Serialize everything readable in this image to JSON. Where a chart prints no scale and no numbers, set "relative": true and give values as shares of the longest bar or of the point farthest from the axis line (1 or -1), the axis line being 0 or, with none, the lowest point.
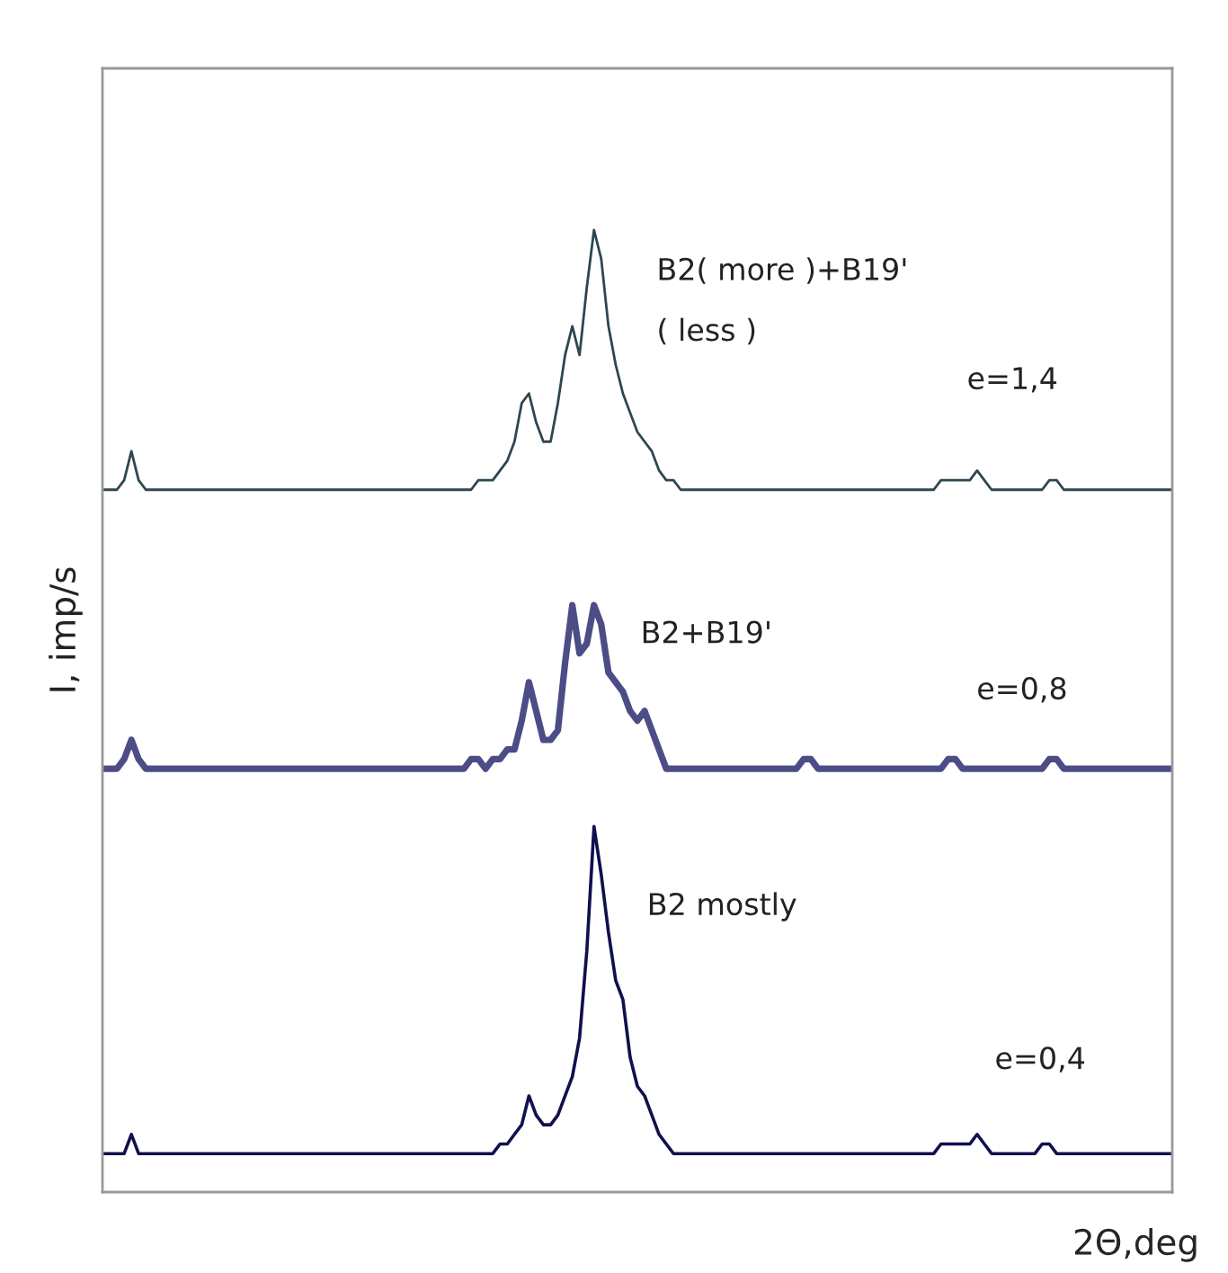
{
  "chart_data": {
    "type": "line",
    "relative": true,
    "ylabel": "I, imp/s",
    "xlabel": "2Θ,deg",
    "legend": false,
    "marker": "none",
    "line_style": "solid",
    "categories": [
      null,
      null,
      null,
      null,
      null,
      null,
      null,
      null,
      null,
      null,
      null,
      null,
      null,
      null,
      null,
      null,
      null,
      null,
      null,
      null,
      null,
      null,
      null,
      null,
      null,
      null,
      null,
      null,
      null,
      null,
      null,
      null,
      null,
      null,
      null,
      null,
      null,
      null,
      null,
      null,
      null,
      null,
      null,
      null,
      null,
      null,
      null,
      null,
      null,
      null,
      null,
      null,
      null,
      null,
      null,
      null,
      null,
      null,
      null,
      null,
      null,
      null,
      null,
      null,
      null,
      null,
      null,
      null,
      null,
      null,
      null,
      null,
      null,
      null,
      null,
      null,
      null,
      null,
      null,
      null,
      null,
      null,
      null,
      null,
      null,
      null,
      null,
      null,
      null,
      null,
      null,
      null,
      null,
      null,
      null,
      null,
      null,
      null,
      null,
      null,
      null,
      null,
      null,
      null,
      null,
      null,
      null,
      null,
      null,
      null,
      null,
      null,
      null,
      null,
      null,
      null,
      null,
      null,
      null,
      null,
      null,
      null,
      null,
      null,
      null,
      null,
      null,
      null,
      null,
      null,
      null,
      null,
      null,
      null,
      null,
      null,
      null,
      null,
      null,
      null,
      null,
      null,
      null,
      null,
      null,
      null,
      null,
      null,
      null
    ],
    "series": [
      {
        "color": "#2e4650",
        "values": [
          0.73,
          0.73,
          0.73,
          0.74,
          0.77,
          0.74,
          0.73,
          0.73,
          0.73,
          0.73,
          0.73,
          0.73,
          0.73,
          0.73,
          0.73,
          0.73,
          0.73,
          0.73,
          0.73,
          0.73,
          0.73,
          0.73,
          0.73,
          0.73,
          0.73,
          0.73,
          0.73,
          0.73,
          0.73,
          0.73,
          0.73,
          0.73,
          0.73,
          0.73,
          0.73,
          0.73,
          0.73,
          0.73,
          0.73,
          0.73,
          0.73,
          0.73,
          0.73,
          0.73,
          0.73,
          0.73,
          0.73,
          0.73,
          0.73,
          0.73,
          0.73,
          0.73,
          0.74,
          0.74,
          0.74,
          0.75,
          0.76,
          0.78,
          0.82,
          0.83,
          0.8,
          0.78,
          0.78,
          0.82,
          0.87,
          0.9,
          0.87,
          0.94,
          1.0,
          0.97,
          0.9,
          0.86,
          0.83,
          0.81,
          0.79,
          0.78,
          0.77,
          0.75,
          0.74,
          0.74,
          0.73,
          0.73,
          0.73,
          0.73,
          0.73,
          0.73,
          0.73,
          0.73,
          0.73,
          0.73,
          0.73,
          0.73,
          0.73,
          0.73,
          0.73,
          0.73,
          0.73,
          0.73,
          0.73,
          0.73,
          0.73,
          0.73,
          0.73,
          0.73,
          0.73,
          0.73,
          0.73,
          0.73,
          0.73,
          0.73,
          0.73,
          0.73,
          0.73,
          0.73,
          0.73,
          0.73,
          0.74,
          0.74,
          0.74,
          0.74,
          0.74,
          0.75,
          0.74,
          0.73,
          0.73,
          0.73,
          0.73,
          0.73,
          0.73,
          0.73,
          0.73,
          0.74,
          0.74,
          0.73,
          0.73,
          0.73,
          0.73,
          0.73,
          0.73,
          0.73,
          0.73,
          0.73,
          0.73,
          0.73,
          0.73,
          0.73,
          0.73,
          0.73,
          0.73
        ]
      },
      {
        "color": "#4c4c86",
        "values": [
          0.44,
          0.44,
          0.44,
          0.45,
          0.47,
          0.45,
          0.44,
          0.44,
          0.44,
          0.44,
          0.44,
          0.44,
          0.44,
          0.44,
          0.44,
          0.44,
          0.44,
          0.44,
          0.44,
          0.44,
          0.44,
          0.44,
          0.44,
          0.44,
          0.44,
          0.44,
          0.44,
          0.44,
          0.44,
          0.44,
          0.44,
          0.44,
          0.44,
          0.44,
          0.44,
          0.44,
          0.44,
          0.44,
          0.44,
          0.44,
          0.44,
          0.44,
          0.44,
          0.44,
          0.44,
          0.44,
          0.44,
          0.44,
          0.44,
          0.44,
          0.44,
          0.45,
          0.45,
          0.44,
          0.45,
          0.45,
          0.46,
          0.46,
          0.49,
          0.53,
          0.5,
          0.47,
          0.47,
          0.48,
          0.55,
          0.61,
          0.56,
          0.57,
          0.61,
          0.59,
          0.54,
          0.53,
          0.52,
          0.5,
          0.49,
          0.5,
          0.48,
          0.46,
          0.44,
          0.44,
          0.44,
          0.44,
          0.44,
          0.44,
          0.44,
          0.44,
          0.44,
          0.44,
          0.44,
          0.44,
          0.44,
          0.44,
          0.44,
          0.44,
          0.44,
          0.44,
          0.44,
          0.45,
          0.45,
          0.44,
          0.44,
          0.44,
          0.44,
          0.44,
          0.44,
          0.44,
          0.44,
          0.44,
          0.44,
          0.44,
          0.44,
          0.44,
          0.44,
          0.44,
          0.44,
          0.44,
          0.44,
          0.45,
          0.45,
          0.44,
          0.44,
          0.44,
          0.44,
          0.44,
          0.44,
          0.44,
          0.44,
          0.44,
          0.44,
          0.44,
          0.44,
          0.45,
          0.45,
          0.44,
          0.44,
          0.44,
          0.44,
          0.44,
          0.44,
          0.44,
          0.44,
          0.44,
          0.44,
          0.44,
          0.44,
          0.44,
          0.44,
          0.44,
          0.44
        ]
      },
      {
        "color": "#10104e",
        "values": [
          0.04,
          0.04,
          0.04,
          0.04,
          0.06,
          0.04,
          0.04,
          0.04,
          0.04,
          0.04,
          0.04,
          0.04,
          0.04,
          0.04,
          0.04,
          0.04,
          0.04,
          0.04,
          0.04,
          0.04,
          0.04,
          0.04,
          0.04,
          0.04,
          0.04,
          0.04,
          0.04,
          0.04,
          0.04,
          0.04,
          0.04,
          0.04,
          0.04,
          0.04,
          0.04,
          0.04,
          0.04,
          0.04,
          0.04,
          0.04,
          0.04,
          0.04,
          0.04,
          0.04,
          0.04,
          0.04,
          0.04,
          0.04,
          0.04,
          0.04,
          0.04,
          0.04,
          0.04,
          0.04,
          0.04,
          0.05,
          0.05,
          0.06,
          0.07,
          0.1,
          0.08,
          0.07,
          0.07,
          0.08,
          0.1,
          0.12,
          0.16,
          0.25,
          0.38,
          0.33,
          0.27,
          0.22,
          0.2,
          0.14,
          0.11,
          0.1,
          0.08,
          0.06,
          0.05,
          0.04,
          0.04,
          0.04,
          0.04,
          0.04,
          0.04,
          0.04,
          0.04,
          0.04,
          0.04,
          0.04,
          0.04,
          0.04,
          0.04,
          0.04,
          0.04,
          0.04,
          0.04,
          0.04,
          0.04,
          0.04,
          0.04,
          0.04,
          0.04,
          0.04,
          0.04,
          0.04,
          0.04,
          0.04,
          0.04,
          0.04,
          0.04,
          0.04,
          0.04,
          0.04,
          0.04,
          0.04,
          0.05,
          0.05,
          0.05,
          0.05,
          0.05,
          0.06,
          0.05,
          0.04,
          0.04,
          0.04,
          0.04,
          0.04,
          0.04,
          0.04,
          0.05,
          0.05,
          0.04,
          0.04,
          0.04,
          0.04,
          0.04,
          0.04,
          0.04,
          0.04,
          0.04,
          0.04,
          0.04,
          0.04,
          0.04,
          0.04,
          0.04,
          0.04,
          0.04
        ]
      }
    ],
    "annotations": [
      "B2( more )+B19'",
      "( less )",
      "e=1,4",
      "B2+B19'",
      "e=0,8",
      "B2 mostly",
      "e=0,4"
    ]
  }
}
